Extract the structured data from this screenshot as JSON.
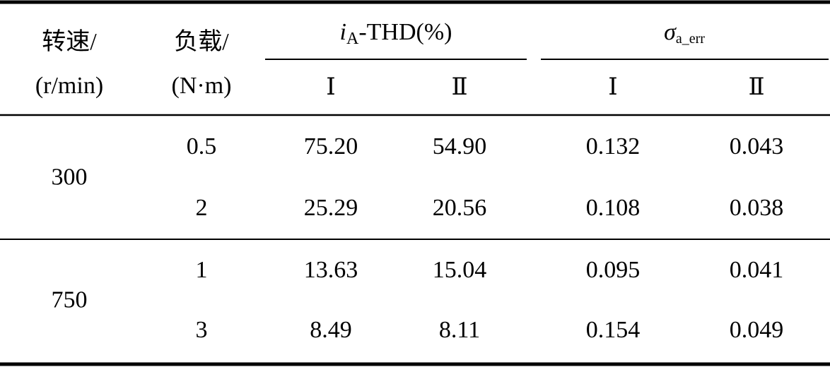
{
  "table": {
    "header": {
      "speed": [
        "转速/",
        "(r/min)"
      ],
      "load": [
        "负载/",
        "(N·m)"
      ],
      "groups": [
        {
          "main": "i",
          "sub": "A",
          "rest": "-THD(%)",
          "columns": [
            "Ⅰ",
            "Ⅱ"
          ]
        },
        {
          "main": "σ",
          "sub": "a_err",
          "columns": [
            "Ⅰ",
            "Ⅱ"
          ]
        }
      ]
    },
    "blocks": [
      {
        "speed": "300",
        "rows": [
          [
            "0.5",
            "75.20",
            "54.90",
            "0.132",
            "0.043"
          ],
          [
            "2",
            "25.29",
            "20.56",
            "0.108",
            "0.038"
          ]
        ]
      },
      {
        "speed": "750",
        "rows": [
          [
            "1",
            "13.63",
            "15.04",
            "0.095",
            "0.041"
          ],
          [
            "3",
            "8.49",
            "8.11",
            "0.154",
            "0.049"
          ]
        ]
      }
    ]
  }
}
